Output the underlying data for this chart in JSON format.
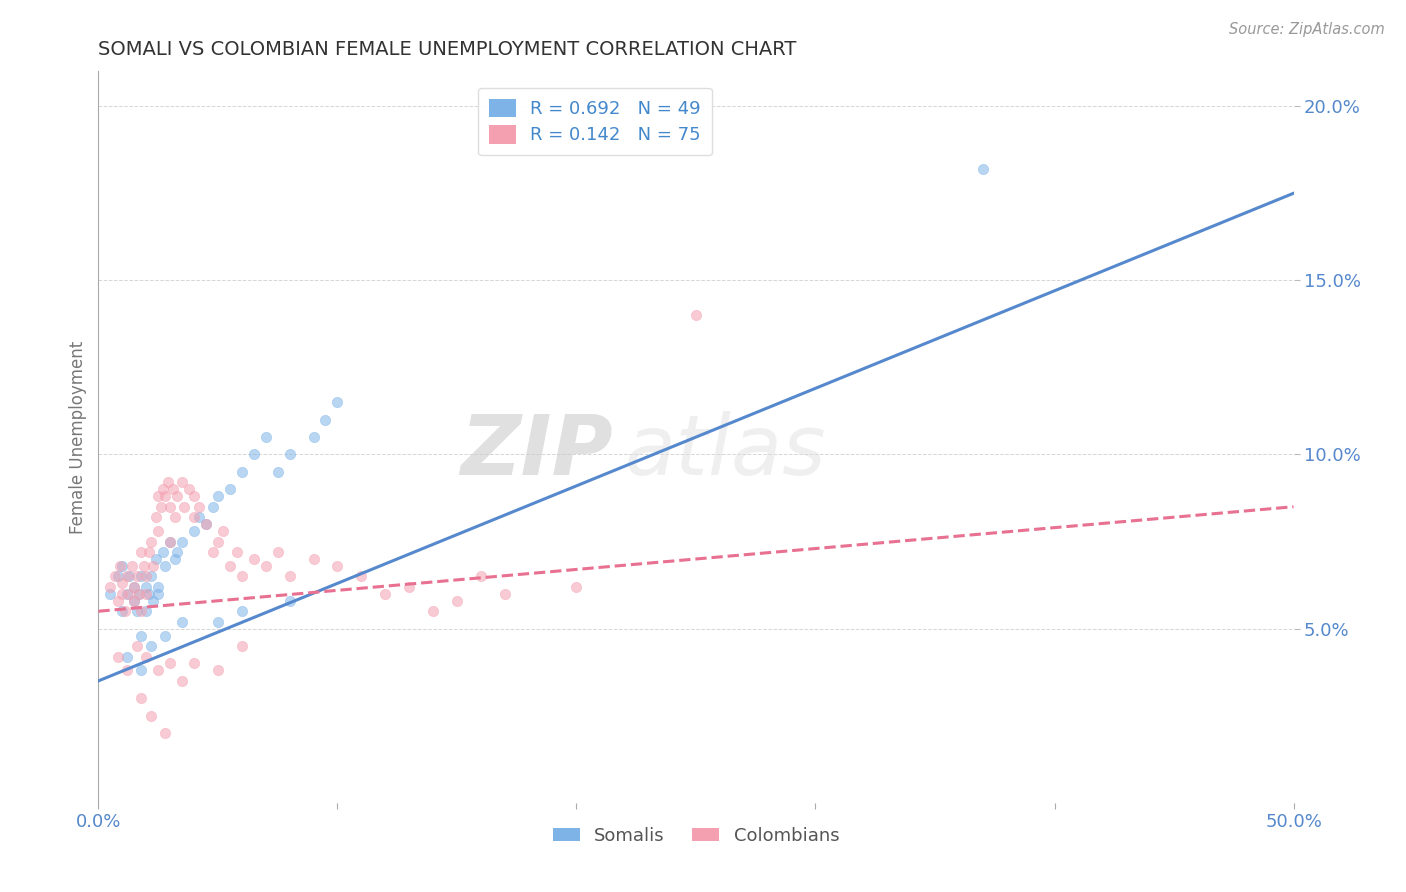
{
  "title": "SOMALI VS COLOMBIAN FEMALE UNEMPLOYMENT CORRELATION CHART",
  "source_text": "Source: ZipAtlas.com",
  "ylabel": "Female Unemployment",
  "xlim": [
    0.0,
    0.5
  ],
  "ylim": [
    0.0,
    0.21
  ],
  "yticks_right": [
    0.05,
    0.1,
    0.15,
    0.2
  ],
  "yticklabels_right": [
    "5.0%",
    "10.0%",
    "15.0%",
    "20.0%"
  ],
  "somali_R": 0.692,
  "somali_N": 49,
  "colombian_R": 0.142,
  "colombian_N": 75,
  "somali_color": "#7EB3E8",
  "colombian_color": "#F4A0B0",
  "somali_line_color": "#5588CC",
  "colombian_line_color": "#E87090",
  "scatter_alpha": 0.55,
  "scatter_size": 55,
  "background_color": "#FFFFFF",
  "grid_color": "#CCCCCC",
  "watermark_text": "ZIPatlas",
  "title_fontsize": 14,
  "axis_label_color": "#777777",
  "tick_label_color": "#5588CC",
  "legend_R_color": "#4488CC",
  "somali_trend_x": [
    0.0,
    0.5
  ],
  "somali_trend_y": [
    0.035,
    0.175
  ],
  "colombian_trend_x": [
    0.0,
    0.5
  ],
  "colombian_trend_y": [
    0.055,
    0.085
  ],
  "somali_scatter_x": [
    0.005,
    0.008,
    0.01,
    0.01,
    0.012,
    0.013,
    0.015,
    0.015,
    0.016,
    0.017,
    0.018,
    0.018,
    0.02,
    0.02,
    0.021,
    0.022,
    0.023,
    0.024,
    0.025,
    0.025,
    0.027,
    0.028,
    0.03,
    0.032,
    0.033,
    0.035,
    0.04,
    0.042,
    0.045,
    0.048,
    0.05,
    0.055,
    0.06,
    0.065,
    0.07,
    0.075,
    0.08,
    0.09,
    0.095,
    0.1,
    0.012,
    0.018,
    0.022,
    0.028,
    0.035,
    0.05,
    0.06,
    0.08,
    0.37
  ],
  "somali_scatter_y": [
    0.06,
    0.065,
    0.055,
    0.068,
    0.06,
    0.065,
    0.058,
    0.062,
    0.055,
    0.06,
    0.065,
    0.048,
    0.062,
    0.055,
    0.06,
    0.065,
    0.058,
    0.07,
    0.062,
    0.06,
    0.072,
    0.068,
    0.075,
    0.07,
    0.072,
    0.075,
    0.078,
    0.082,
    0.08,
    0.085,
    0.088,
    0.09,
    0.095,
    0.1,
    0.105,
    0.095,
    0.1,
    0.105,
    0.11,
    0.115,
    0.042,
    0.038,
    0.045,
    0.048,
    0.052,
    0.052,
    0.055,
    0.058,
    0.182
  ],
  "colombian_scatter_x": [
    0.005,
    0.007,
    0.008,
    0.009,
    0.01,
    0.01,
    0.011,
    0.012,
    0.013,
    0.014,
    0.015,
    0.015,
    0.016,
    0.017,
    0.018,
    0.018,
    0.019,
    0.02,
    0.02,
    0.021,
    0.022,
    0.023,
    0.024,
    0.025,
    0.025,
    0.026,
    0.027,
    0.028,
    0.029,
    0.03,
    0.03,
    0.031,
    0.032,
    0.033,
    0.035,
    0.036,
    0.038,
    0.04,
    0.04,
    0.042,
    0.045,
    0.048,
    0.05,
    0.052,
    0.055,
    0.058,
    0.06,
    0.065,
    0.07,
    0.075,
    0.08,
    0.09,
    0.1,
    0.11,
    0.12,
    0.13,
    0.14,
    0.15,
    0.16,
    0.17,
    0.008,
    0.012,
    0.016,
    0.02,
    0.025,
    0.03,
    0.035,
    0.04,
    0.05,
    0.06,
    0.018,
    0.022,
    0.028,
    0.2,
    0.25
  ],
  "colombian_scatter_y": [
    0.062,
    0.065,
    0.058,
    0.068,
    0.06,
    0.063,
    0.055,
    0.065,
    0.06,
    0.068,
    0.058,
    0.062,
    0.065,
    0.06,
    0.072,
    0.055,
    0.068,
    0.065,
    0.06,
    0.072,
    0.075,
    0.068,
    0.082,
    0.078,
    0.088,
    0.085,
    0.09,
    0.088,
    0.092,
    0.085,
    0.075,
    0.09,
    0.082,
    0.088,
    0.092,
    0.085,
    0.09,
    0.088,
    0.082,
    0.085,
    0.08,
    0.072,
    0.075,
    0.078,
    0.068,
    0.072,
    0.065,
    0.07,
    0.068,
    0.072,
    0.065,
    0.07,
    0.068,
    0.065,
    0.06,
    0.062,
    0.055,
    0.058,
    0.065,
    0.06,
    0.042,
    0.038,
    0.045,
    0.042,
    0.038,
    0.04,
    0.035,
    0.04,
    0.038,
    0.045,
    0.03,
    0.025,
    0.02,
    0.062,
    0.14
  ]
}
